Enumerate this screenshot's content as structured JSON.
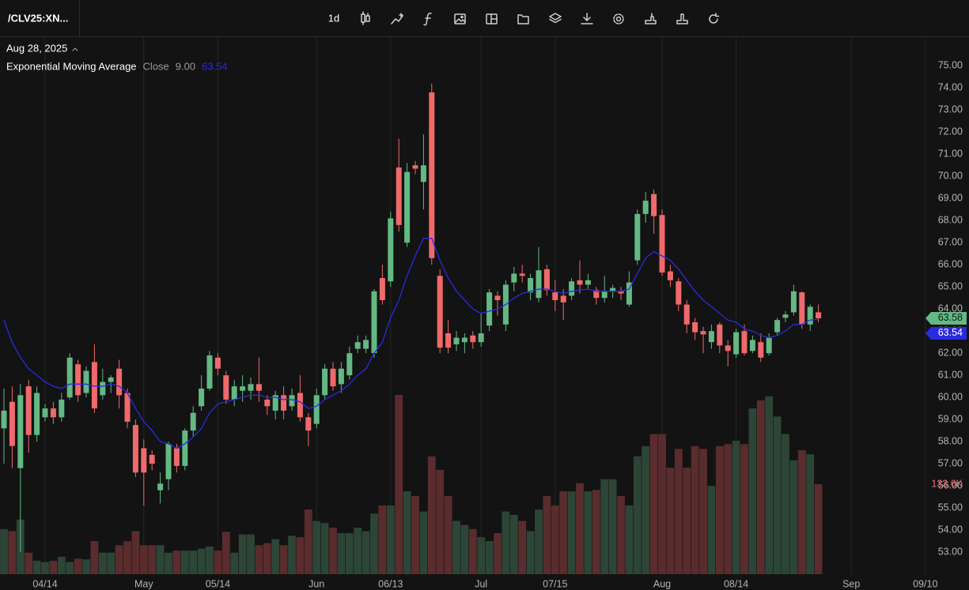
{
  "toolbar": {
    "symbol": "/CLV25:XN...",
    "interval": "1d"
  },
  "chart_data": {
    "type": "candlestick",
    "date": "Aug 28, 2025",
    "ema": {
      "name": "Exponential Moving Average",
      "source": "Close",
      "length": "9.00",
      "color": "#2a2ae0",
      "current_label": "63.54",
      "values": [
        63.5,
        62.5,
        61.8,
        61.3,
        61.0,
        60.7,
        60.5,
        60.4,
        60.6,
        60.6,
        60.6,
        60.5,
        60.5,
        60.6,
        60.5,
        60.2,
        59.5,
        58.9,
        58.5,
        58.0,
        57.9,
        57.7,
        57.9,
        58.2,
        58.6,
        59.3,
        59.7,
        59.8,
        59.9,
        60.0,
        60.1,
        60.1,
        60.0,
        60.0,
        59.9,
        59.9,
        59.8,
        59.5,
        59.6,
        59.9,
        60.1,
        60.3,
        60.6,
        61.0,
        61.3,
        62.0,
        62.5,
        63.6,
        64.4,
        65.5,
        66.4,
        67.2,
        67.2,
        66.2,
        65.4,
        64.8,
        64.4,
        64.0,
        63.8,
        63.9,
        64.0,
        64.2,
        64.5,
        64.7,
        64.8,
        64.9,
        64.9,
        64.8,
        64.7,
        64.8,
        64.85,
        64.9,
        64.8,
        64.8,
        64.8,
        64.8,
        64.9,
        65.6,
        66.3,
        66.6,
        66.4,
        66.2,
        65.8,
        65.3,
        64.8,
        64.4,
        64.1,
        63.8,
        63.5,
        63.4,
        63.1,
        63.0,
        62.8,
        62.7,
        62.8,
        63.0,
        63.3,
        63.3,
        63.5,
        63.54,
        null,
        null,
        null,
        null,
        null,
        null,
        null,
        null,
        null,
        null,
        null,
        null,
        null,
        null
      ]
    },
    "categories": [
      null,
      null,
      null,
      null,
      null,
      "04/14",
      null,
      null,
      null,
      null,
      null,
      null,
      null,
      null,
      null,
      null,
      null,
      "May",
      null,
      null,
      null,
      null,
      null,
      null,
      null,
      null,
      "05/14",
      null,
      null,
      null,
      null,
      null,
      null,
      null,
      null,
      null,
      null,
      null,
      "Jun",
      null,
      null,
      null,
      null,
      null,
      null,
      null,
      null,
      "06/13",
      null,
      null,
      null,
      null,
      null,
      null,
      null,
      null,
      null,
      null,
      "Jul",
      null,
      null,
      null,
      null,
      null,
      null,
      null,
      null,
      "07/15",
      null,
      null,
      null,
      null,
      null,
      null,
      null,
      null,
      null,
      null,
      null,
      null,
      "Aug",
      null,
      null,
      null,
      null,
      null,
      null,
      null,
      null,
      "08/14",
      null,
      null,
      null,
      null,
      null,
      null,
      null,
      null,
      null,
      null,
      null,
      null,
      null,
      "Sep",
      null,
      null,
      null,
      null,
      null,
      null,
      null,
      null,
      "09/10",
      null
    ],
    "open": [
      58.6,
      59.8,
      56.8,
      60.5,
      58.3,
      59.1,
      59.5,
      59.1,
      60.0,
      61.5,
      60.2,
      61.6,
      60.1,
      60.7,
      61.3,
      60.2,
      58.75,
      57.7,
      57.4,
      55.8,
      56.3,
      57.7,
      56.9,
      58.5,
      59.6,
      60.4,
      61.8,
      61.0,
      59.9,
      60.3,
      60.3,
      60.6,
      59.9,
      59.4,
      60.1,
      59.6,
      60.2,
      59.1,
      58.8,
      60.1,
      61.3,
      60.6,
      61.0,
      62.2,
      62.2,
      62.0,
      65.4,
      65.25,
      70.4,
      67.0,
      70.5,
      69.75,
      73.8,
      65.5,
      62.9,
      62.4,
      62.5,
      62.8,
      62.5,
      63.25,
      64.6,
      63.3,
      65.2,
      65.6,
      64.75,
      64.5,
      65.8,
      64.75,
      64.6,
      64.6,
      65.3,
      65.1,
      64.85,
      64.5,
      64.8,
      64.8,
      64.2,
      66.2,
      68.3,
      69.2,
      68.25,
      65.7,
      65.25,
      64.2,
      63.4,
      63.0,
      62.5,
      63.3,
      62.35,
      61.95,
      63.0,
      62.1,
      62.5,
      62.0,
      62.95,
      63.6,
      63.85,
      64.75,
      63.3,
      63.85,
      null,
      null,
      null,
      null,
      null,
      null,
      null,
      null,
      null,
      null,
      null,
      null,
      null,
      null
    ],
    "high": [
      60.4,
      60.5,
      60.6,
      60.8,
      60.5,
      59.7,
      59.8,
      60.2,
      62.0,
      61.7,
      61.4,
      62.4,
      61.3,
      61.0,
      61.7,
      60.4,
      59.0,
      58.1,
      57.6,
      56.6,
      58.0,
      57.9,
      58.6,
      59.6,
      61.0,
      62.1,
      62.0,
      61.2,
      60.8,
      61.0,
      60.9,
      61.8,
      60.1,
      60.3,
      60.5,
      60.4,
      61.0,
      59.3,
      60.4,
      61.5,
      61.6,
      61.6,
      62.3,
      62.8,
      62.8,
      64.9,
      66.0,
      68.4,
      71.7,
      70.6,
      70.7,
      71.9,
      74.2,
      65.8,
      63.5,
      63.0,
      62.9,
      63.0,
      63.8,
      64.9,
      64.8,
      65.3,
      65.9,
      66.0,
      65.6,
      66.8,
      66.0,
      65.3,
      64.9,
      65.4,
      66.2,
      65.6,
      65.0,
      65.5,
      65.1,
      65.0,
      65.7,
      68.5,
      69.3,
      69.4,
      68.5,
      66.0,
      65.4,
      64.4,
      63.6,
      63.2,
      63.3,
      63.4,
      62.6,
      63.1,
      63.3,
      62.8,
      62.9,
      62.9,
      63.6,
      63.9,
      65.1,
      64.8,
      64.2,
      64.2,
      null,
      null,
      null,
      null,
      null,
      null,
      null,
      null,
      null,
      null,
      null,
      null,
      null,
      null
    ],
    "low": [
      57.0,
      56.8,
      53.0,
      57.5,
      58.0,
      58.9,
      58.8,
      58.9,
      59.9,
      59.8,
      60.0,
      59.3,
      59.9,
      60.2,
      59.5,
      58.6,
      56.4,
      55.1,
      56.7,
      55.2,
      55.8,
      56.6,
      56.7,
      58.2,
      59.4,
      60.3,
      61.0,
      59.7,
      59.6,
      59.8,
      59.9,
      59.8,
      59.2,
      59.0,
      59.0,
      59.4,
      58.9,
      57.8,
      58.6,
      59.9,
      60.3,
      60.2,
      60.8,
      62.0,
      62.0,
      61.8,
      64.2,
      65.0,
      67.5,
      66.8,
      70.1,
      68.5,
      66.0,
      62.0,
      62.0,
      62.1,
      62.0,
      62.2,
      62.3,
      63.0,
      63.7,
      63.0,
      64.8,
      65.2,
      64.4,
      64.3,
      64.6,
      63.9,
      63.5,
      64.4,
      64.7,
      64.9,
      64.2,
      64.3,
      64.5,
      64.4,
      64.1,
      66.0,
      67.9,
      67.4,
      65.5,
      65.0,
      63.9,
      62.9,
      62.6,
      62.0,
      62.2,
      62.0,
      61.4,
      61.8,
      61.9,
      62.0,
      61.6,
      61.9,
      62.8,
      63.4,
      63.7,
      63.1,
      63.0,
      63.4,
      null,
      null,
      null,
      null,
      null,
      null,
      null,
      null,
      null,
      null,
      null,
      null,
      null,
      null
    ],
    "close": [
      59.4,
      57.8,
      60.1,
      58.3,
      60.2,
      59.5,
      59.1,
      59.9,
      61.8,
      60.1,
      61.2,
      59.5,
      60.7,
      60.9,
      60.1,
      58.9,
      56.6,
      56.6,
      57.0,
      56.1,
      57.9,
      56.9,
      58.5,
      59.3,
      60.4,
      61.9,
      61.3,
      59.9,
      60.5,
      60.5,
      60.6,
      60.3,
      59.6,
      60.1,
      59.4,
      60.1,
      59.1,
      58.5,
      60.1,
      61.3,
      60.5,
      61.3,
      62.0,
      62.5,
      62.6,
      64.8,
      64.4,
      68.1,
      67.8,
      70.2,
      70.35,
      70.5,
      66.3,
      62.25,
      62.25,
      62.7,
      62.7,
      62.5,
      62.9,
      64.75,
      64.4,
      65.1,
      65.6,
      65.5,
      65.4,
      65.75,
      64.85,
      64.4,
      64.3,
      65.25,
      65.1,
      65.3,
      64.5,
      64.8,
      64.95,
      64.7,
      65.2,
      68.3,
      68.9,
      68.2,
      65.65,
      65.3,
      64.2,
      63.3,
      62.95,
      62.85,
      63.0,
      62.35,
      62.1,
      62.95,
      62.0,
      62.6,
      61.8,
      62.7,
      63.5,
      63.75,
      64.8,
      63.3,
      64.1,
      63.58,
      null,
      null,
      null,
      null,
      null,
      null,
      null,
      null,
      null,
      null,
      null,
      null,
      null,
      null
    ],
    "close_label": "63.58",
    "volume": [
      67,
      64,
      81,
      32,
      20,
      18,
      20,
      26,
      18,
      23,
      22,
      49,
      32,
      32,
      43,
      49,
      64,
      43,
      43,
      43,
      32,
      35,
      35,
      35,
      38,
      41,
      35,
      63,
      32,
      59,
      59,
      43,
      46,
      52,
      43,
      57,
      55,
      96,
      79,
      76,
      69,
      61,
      61,
      69,
      64,
      90,
      102,
      102,
      266,
      123,
      116,
      93,
      175,
      155,
      116,
      79,
      73,
      67,
      55,
      49,
      61,
      93,
      88,
      79,
      64,
      96,
      116,
      102,
      123,
      123,
      135,
      123,
      125,
      141,
      141,
      116,
      102,
      175,
      190,
      208,
      208,
      158,
      186,
      158,
      190,
      186,
      131,
      190,
      193,
      198,
      193,
      246,
      258,
      264,
      234,
      208,
      169,
      184,
      178,
      133.6,
      null,
      null,
      null,
      null,
      null,
      null,
      null,
      null,
      null,
      null,
      null,
      null,
      null,
      null
    ],
    "volume_label": "133.6K",
    "volume_lim": [
      0,
      797
    ],
    "ylim": [
      52,
      76.3
    ],
    "yticks": [
      {
        "value": 53,
        "label": "53.00"
      },
      {
        "value": 54,
        "label": "54.00"
      },
      {
        "value": 55,
        "label": "55.00"
      },
      {
        "value": 56,
        "label": "56.00"
      },
      {
        "value": 57,
        "label": "57.00"
      },
      {
        "value": 58,
        "label": "58.00"
      },
      {
        "value": 59,
        "label": "59.00"
      },
      {
        "value": 60,
        "label": "60.00"
      },
      {
        "value": 61,
        "label": "61.00"
      },
      {
        "value": 62,
        "label": "62.00"
      },
      {
        "value": 63,
        "label": "63.00"
      },
      {
        "value": 64,
        "label": "64.00"
      },
      {
        "value": 65,
        "label": "65.00"
      },
      {
        "value": 66,
        "label": "66.00"
      },
      {
        "value": 67,
        "label": "67.00"
      },
      {
        "value": 68,
        "label": "68.00"
      },
      {
        "value": 69,
        "label": "69.00"
      },
      {
        "value": 70,
        "label": "70.00"
      },
      {
        "value": 71,
        "label": "71.00"
      },
      {
        "value": 72,
        "label": "72.00"
      },
      {
        "value": 73,
        "label": "73.00"
      },
      {
        "value": 74,
        "label": "74.00"
      },
      {
        "value": 75,
        "label": "75.00"
      }
    ],
    "up_color": "#63b883",
    "down_color": "#f0696b",
    "up_volume_color": "#2c4536",
    "down_volume_color": "#5a2c2d",
    "grid": true
  }
}
